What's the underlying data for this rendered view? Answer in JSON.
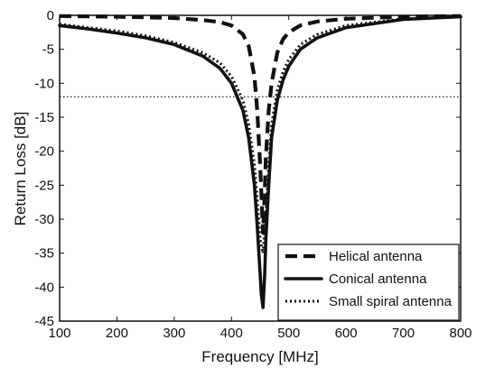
{
  "chart_data": {
    "type": "line",
    "xlabel": "Frequency [MHz]",
    "ylabel": "Return Loss [dB]",
    "xlim": [
      100,
      800
    ],
    "ylim": [
      -45,
      0
    ],
    "xticks": [
      100,
      200,
      300,
      400,
      500,
      600,
      700,
      800
    ],
    "yticks": [
      0,
      -5,
      -10,
      -15,
      -20,
      -25,
      -30,
      -35,
      -40,
      -45
    ],
    "grid": false,
    "legend_position": "bottom-right",
    "reference_line": {
      "y": -12,
      "style": "dotted"
    },
    "series": [
      {
        "name": "Helical antenna",
        "style": "dashed",
        "x": [
          100,
          200,
          300,
          350,
          380,
          400,
          420,
          430,
          440,
          445,
          450,
          452,
          455,
          458,
          460,
          465,
          470,
          480,
          490,
          500,
          520,
          550,
          600,
          700,
          800
        ],
        "y": [
          -0.1,
          -0.2,
          -0.4,
          -0.7,
          -1.0,
          -1.5,
          -2.8,
          -4.5,
          -9,
          -14,
          -22,
          -26,
          -32,
          -26,
          -21,
          -14,
          -10,
          -5.5,
          -3.5,
          -2.5,
          -1.5,
          -0.9,
          -0.5,
          -0.2,
          -0.1
        ]
      },
      {
        "name": "Conical antenna",
        "style": "solid",
        "x": [
          100,
          150,
          200,
          250,
          300,
          350,
          380,
          400,
          420,
          430,
          440,
          445,
          450,
          452,
          455,
          458,
          460,
          465,
          470,
          480,
          490,
          500,
          520,
          550,
          600,
          700,
          800
        ],
        "y": [
          -1.5,
          -2.0,
          -2.6,
          -3.3,
          -4.3,
          -6.0,
          -7.8,
          -10,
          -14,
          -18,
          -25,
          -31,
          -38,
          -41,
          -43,
          -38,
          -33,
          -25,
          -18,
          -12.5,
          -9.5,
          -7.5,
          -5.0,
          -3.3,
          -1.8,
          -0.6,
          -0.2
        ]
      },
      {
        "name": "Small spiral antenna",
        "style": "dotted",
        "x": [
          100,
          150,
          200,
          250,
          300,
          350,
          380,
          400,
          420,
          430,
          440,
          445,
          450,
          455,
          460,
          465,
          470,
          480,
          490,
          500,
          520,
          550,
          600,
          700,
          800
        ],
        "y": [
          -1.3,
          -1.8,
          -2.3,
          -3.0,
          -4.0,
          -5.5,
          -7.0,
          -9.0,
          -12.5,
          -16,
          -22,
          -27,
          -33,
          -35,
          -29,
          -22,
          -16,
          -11,
          -8.3,
          -6.5,
          -4.3,
          -2.8,
          -1.5,
          -0.5,
          -0.2
        ]
      }
    ]
  }
}
